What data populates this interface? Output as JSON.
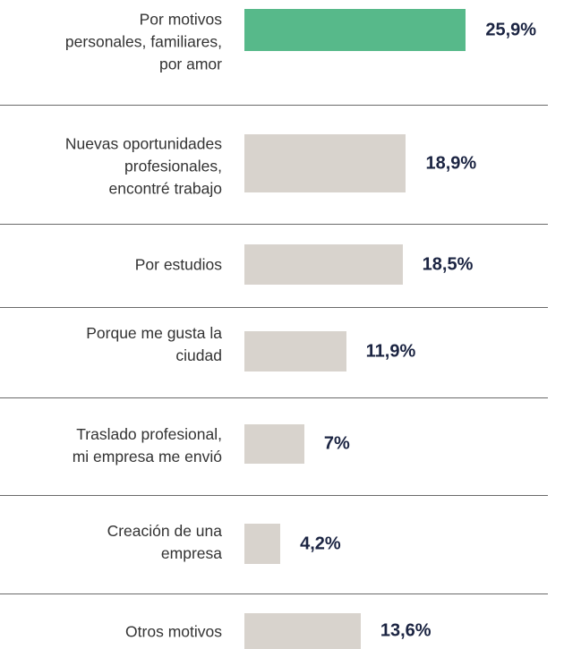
{
  "chart_data": {
    "type": "bar",
    "categories": [
      "Por motivos\npersonales, familiares,\npor amor",
      "Nuevas oportunidades\nprofesionales,\nencontré trabajo",
      "Por estudios",
      "Porque me gusta la\nciudad",
      "Traslado profesional,\nmi empresa me envió",
      "Creación de una\nempresa",
      "Otros motivos"
    ],
    "values": [
      25.9,
      18.9,
      18.5,
      11.9,
      7,
      4.2,
      13.6
    ],
    "value_labels": [
      "25,9%",
      "18,9%",
      "18,5%",
      "11,9%",
      "7%",
      "4,2%",
      "13,6%"
    ],
    "colors": [
      "#57b98a",
      "#d8d3cd",
      "#d8d3cd",
      "#d8d3cd",
      "#d8d3cd",
      "#d8d3cd",
      "#d8d3cd"
    ]
  }
}
